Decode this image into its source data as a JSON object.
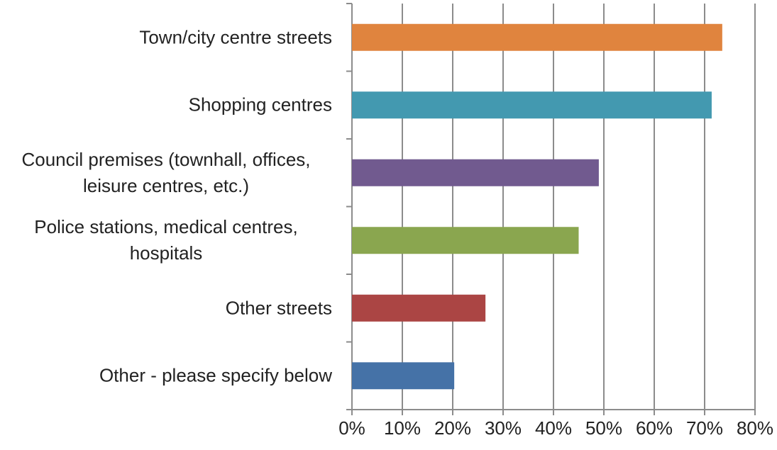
{
  "chart_data": {
    "type": "bar",
    "orientation": "horizontal",
    "categories": [
      "Town/city centre streets",
      "Shopping centres",
      "Council premises (townhall, offices, leisure centres, etc.)",
      "Police stations, medical centres, hospitals",
      "Other streets",
      "Other - please specify below"
    ],
    "values": [
      73.5,
      71.4,
      49,
      45,
      26.5,
      20.3
    ],
    "colors": [
      "#e0843e",
      "#4399b0",
      "#715a8f",
      "#8aa64f",
      "#ab4544",
      "#4572a7"
    ],
    "xlim": [
      0,
      80
    ],
    "xticks": [
      {
        "value": 0,
        "label": "0%"
      },
      {
        "value": 10,
        "label": "10%"
      },
      {
        "value": 20,
        "label": "20%"
      },
      {
        "value": 30,
        "label": "30%"
      },
      {
        "value": 40,
        "label": "40%"
      },
      {
        "value": 50,
        "label": "50%"
      },
      {
        "value": 60,
        "label": "60%"
      },
      {
        "value": 70,
        "label": "70%"
      },
      {
        "value": 80,
        "label": "80%"
      }
    ],
    "grid": true
  }
}
